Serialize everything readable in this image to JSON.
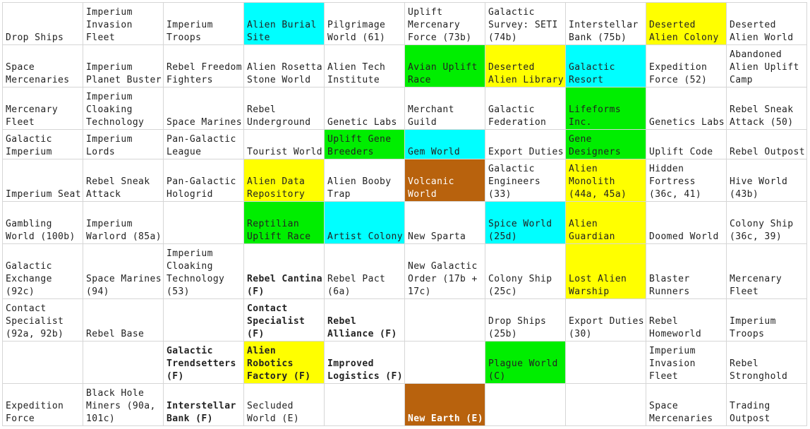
{
  "colors": {
    "cyan": "#00ffff",
    "yellow": "#ffff00",
    "green": "#00ee00",
    "brown": "#b8620d",
    "none": "#ffffff"
  },
  "rows": [
    [
      {
        "text": "Drop Ships",
        "color": "none",
        "bold": false
      },
      {
        "text": "Imperium Invasion Fleet",
        "color": "none",
        "bold": false
      },
      {
        "text": "Imperium Troops",
        "color": "none",
        "bold": false
      },
      {
        "text": "Alien Burial Site",
        "color": "cyan",
        "bold": false
      },
      {
        "text": "Pilgrimage World (61)",
        "color": "none",
        "bold": false
      },
      {
        "text": "Uplift Mercenary Force (73b)",
        "color": "none",
        "bold": false
      },
      {
        "text": "Galactic Survey: SETI (74b)",
        "color": "none",
        "bold": false
      },
      {
        "text": "Interstellar Bank (75b)",
        "color": "none",
        "bold": false
      },
      {
        "text": "Deserted Alien Colony",
        "color": "yellow",
        "bold": false
      },
      {
        "text": "Deserted Alien World",
        "color": "none",
        "bold": false
      }
    ],
    [
      {
        "text": "Space Mercenaries",
        "color": "none",
        "bold": false
      },
      {
        "text": "Imperium Planet Buster",
        "color": "none",
        "bold": false
      },
      {
        "text": "Rebel Freedom Fighters",
        "color": "none",
        "bold": false
      },
      {
        "text": "Alien Rosetta Stone World",
        "color": "none",
        "bold": false
      },
      {
        "text": "Alien Tech Institute",
        "color": "none",
        "bold": false
      },
      {
        "text": "Avian Uplift Race",
        "color": "green",
        "bold": false
      },
      {
        "text": "Deserted Alien Library",
        "color": "yellow",
        "bold": false
      },
      {
        "text": "Galactic Resort",
        "color": "cyan",
        "bold": false
      },
      {
        "text": "Expedition Force (52)",
        "color": "none",
        "bold": false
      },
      {
        "text": "Abandoned Alien Uplift Camp",
        "color": "none",
        "bold": false
      }
    ],
    [
      {
        "text": "Mercenary Fleet",
        "color": "none",
        "bold": false
      },
      {
        "text": "Imperium Cloaking Technology",
        "color": "none",
        "bold": false
      },
      {
        "text": "Space Marines",
        "color": "none",
        "bold": false
      },
      {
        "text": "Rebel Underground",
        "color": "none",
        "bold": false
      },
      {
        "text": "Genetic Labs",
        "color": "none",
        "bold": false
      },
      {
        "text": "Merchant Guild",
        "color": "none",
        "bold": false
      },
      {
        "text": "Galactic Federation",
        "color": "none",
        "bold": false
      },
      {
        "text": "Lifeforms Inc.",
        "color": "green",
        "bold": false
      },
      {
        "text": "Genetics Labs",
        "color": "none",
        "bold": false
      },
      {
        "text": "Rebel Sneak Attack (50)",
        "color": "none",
        "bold": false
      }
    ],
    [
      {
        "text": "Galactic Imperium",
        "color": "none",
        "bold": false
      },
      {
        "text": "Imperium Lords",
        "color": "none",
        "bold": false
      },
      {
        "text": "Pan-Galactic League",
        "color": "none",
        "bold": false
      },
      {
        "text": "Tourist World",
        "color": "none",
        "bold": false
      },
      {
        "text": "Uplift Gene Breeders",
        "color": "green",
        "bold": false
      },
      {
        "text": "Gem World",
        "color": "cyan",
        "bold": false
      },
      {
        "text": "Export Duties",
        "color": "none",
        "bold": false
      },
      {
        "text": "Gene Designers",
        "color": "green",
        "bold": false
      },
      {
        "text": "Uplift Code",
        "color": "none",
        "bold": false
      },
      {
        "text": "Rebel Outpost",
        "color": "none",
        "bold": false
      }
    ],
    [
      {
        "text": "Imperium Seat",
        "color": "none",
        "bold": false
      },
      {
        "text": "Rebel Sneak Attack",
        "color": "none",
        "bold": false
      },
      {
        "text": "Pan-Galactic Hologrid",
        "color": "none",
        "bold": false
      },
      {
        "text": "Alien Data Repository",
        "color": "yellow",
        "bold": false
      },
      {
        "text": "Alien Booby Trap",
        "color": "none",
        "bold": false
      },
      {
        "text": "Volcanic World",
        "color": "brown",
        "bold": false
      },
      {
        "text": "Galactic Engineers (33)",
        "color": "none",
        "bold": false
      },
      {
        "text": "Alien Monolith (44a, 45a)",
        "color": "yellow",
        "bold": false
      },
      {
        "text": "Hidden Fortress (36c, 41)",
        "color": "none",
        "bold": false
      },
      {
        "text": "Hive World (43b)",
        "color": "none",
        "bold": false
      }
    ],
    [
      {
        "text": "Gambling World (100b)",
        "color": "none",
        "bold": false
      },
      {
        "text": "Imperium Warlord (85a)",
        "color": "none",
        "bold": false
      },
      {
        "text": "",
        "color": "none",
        "bold": false
      },
      {
        "text": "Reptilian Uplift Race",
        "color": "green",
        "bold": false
      },
      {
        "text": "Artist Colony",
        "color": "cyan",
        "bold": false
      },
      {
        "text": "New Sparta",
        "color": "none",
        "bold": false
      },
      {
        "text": "Spice World (25d)",
        "color": "cyan",
        "bold": false
      },
      {
        "text": "Alien Guardian",
        "color": "yellow",
        "bold": false
      },
      {
        "text": "Doomed World",
        "color": "none",
        "bold": false
      },
      {
        "text": "Colony Ship (36c, 39)",
        "color": "none",
        "bold": false
      }
    ],
    [
      {
        "text": "Galactic Exchange (92c)",
        "color": "none",
        "bold": false
      },
      {
        "text": "Space Marines (94)",
        "color": "none",
        "bold": false
      },
      {
        "text": "Imperium Cloaking Technology (53)",
        "color": "none",
        "bold": false
      },
      {
        "text": "Rebel Cantina (F)",
        "color": "none",
        "bold": true
      },
      {
        "text": "Rebel Pact (6a)",
        "color": "none",
        "bold": false
      },
      {
        "text": "New Galactic Order (17b + 17c)",
        "color": "none",
        "bold": false
      },
      {
        "text": "Colony Ship (25c)",
        "color": "none",
        "bold": false
      },
      {
        "text": "Lost Alien Warship",
        "color": "yellow",
        "bold": false
      },
      {
        "text": "Blaster Runners",
        "color": "none",
        "bold": false
      },
      {
        "text": "Mercenary Fleet",
        "color": "none",
        "bold": false
      }
    ],
    [
      {
        "text": "Contact Specialist (92a, 92b)",
        "color": "none",
        "bold": false
      },
      {
        "text": "Rebel Base",
        "color": "none",
        "bold": false
      },
      {
        "text": "",
        "color": "none",
        "bold": false
      },
      {
        "text": "Contact Specialist (F)",
        "color": "none",
        "bold": true
      },
      {
        "text": "Rebel Alliance (F)",
        "color": "none",
        "bold": true
      },
      {
        "text": "",
        "color": "none",
        "bold": false
      },
      {
        "text": "Drop Ships (25b)",
        "color": "none",
        "bold": false
      },
      {
        "text": "Export Duties (30)",
        "color": "none",
        "bold": false
      },
      {
        "text": "Rebel Homeworld",
        "color": "none",
        "bold": false
      },
      {
        "text": "Imperium Troops",
        "color": "none",
        "bold": false
      }
    ],
    [
      {
        "text": "",
        "color": "none",
        "bold": false
      },
      {
        "text": "",
        "color": "none",
        "bold": false
      },
      {
        "text": "Galactic Trendsetters (F)",
        "color": "none",
        "bold": true
      },
      {
        "text": "Alien Robotics Factory (F)",
        "color": "yellow",
        "bold": true
      },
      {
        "text": "Improved Logistics (F)",
        "color": "none",
        "bold": true
      },
      {
        "text": "",
        "color": "none",
        "bold": false
      },
      {
        "text": "Plague World (C)",
        "color": "green",
        "bold": false
      },
      {
        "text": "",
        "color": "none",
        "bold": false
      },
      {
        "text": "Imperium Invasion Fleet",
        "color": "none",
        "bold": false
      },
      {
        "text": "Rebel Stronghold",
        "color": "none",
        "bold": false
      }
    ],
    [
      {
        "text": "Expedition Force",
        "color": "none",
        "bold": false
      },
      {
        "text": "Black Hole Miners (90a, 101c)",
        "color": "none",
        "bold": false
      },
      {
        "text": "Interstellar Bank (F)",
        "color": "none",
        "bold": true
      },
      {
        "text": "Secluded World (E)",
        "color": "none",
        "bold": false
      },
      {
        "text": "",
        "color": "none",
        "bold": false
      },
      {
        "text": "New Earth (E)",
        "color": "brown",
        "bold": true
      },
      {
        "text": "",
        "color": "none",
        "bold": false
      },
      {
        "text": "",
        "color": "none",
        "bold": false
      },
      {
        "text": "Space Mercenaries",
        "color": "none",
        "bold": false
      },
      {
        "text": "Trading Outpost",
        "color": "none",
        "bold": false
      }
    ]
  ]
}
